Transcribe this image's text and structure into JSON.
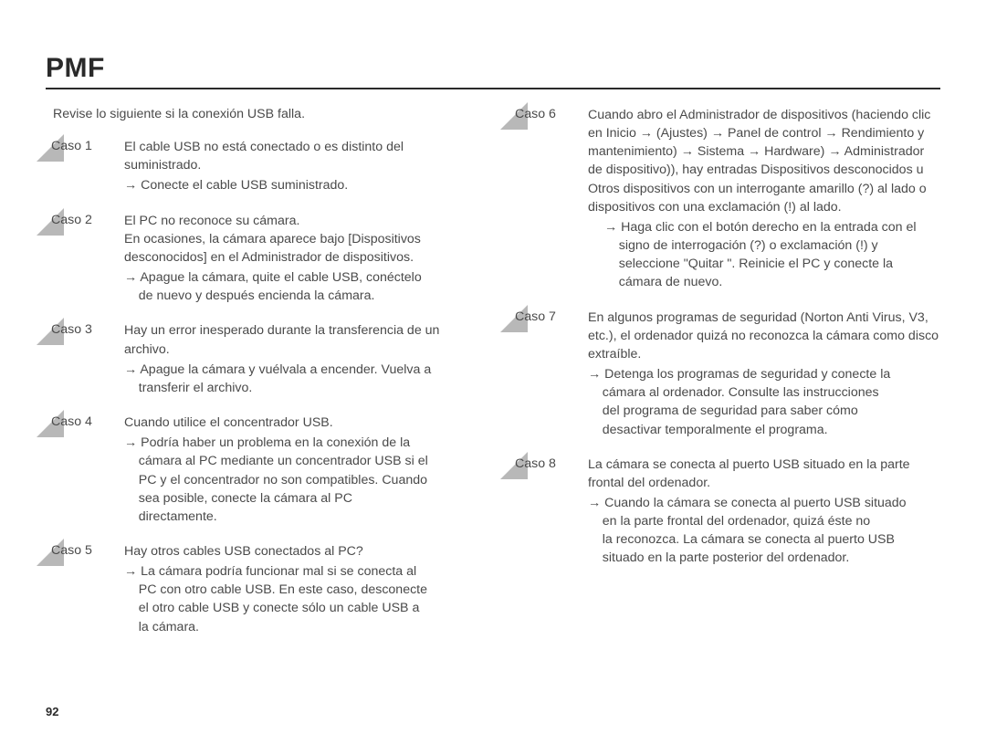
{
  "title": "PMF",
  "intro": "Revise lo siguiente si la conexión USB falla.",
  "page_number": "92",
  "colors": {
    "text": "#4a4a4a",
    "title": "#2a2a2a",
    "triangle": "#b8b8b8",
    "rule": "#2a2a2a",
    "background": "#ffffff"
  },
  "left_cases": [
    {
      "label": "Caso 1",
      "desc": "El cable USB no está conectado o es distinto del suministrado.",
      "action": "→ Conecte el cable USB suministrado."
    },
    {
      "label": "Caso 2",
      "desc": "El PC no reconoce su cámara.\nEn ocasiones, la cámara aparece bajo [Dispositivos desconocidos] en el Administrador de dispositivos.",
      "action": "→ Apague la cámara, quite el cable USB, conéctelo de nuevo y después encienda la cámara."
    },
    {
      "label": "Caso 3",
      "desc": "Hay un error inesperado durante la transferencia de un archivo.",
      "action": "→ Apague la cámara y vuélvala a encender. Vuelva a transferir el archivo."
    },
    {
      "label": "Caso 4",
      "desc": "Cuando utilice el concentrador USB.",
      "action": "→ Podría haber un problema en la conexión de la cámara al PC mediante un concentrador USB si el PC y el concentrador no son compatibles. Cuando sea posible, conecte la cámara al PC directamente."
    },
    {
      "label": "Caso 5",
      "desc": "Hay otros cables USB conectados al PC?",
      "action": "→ La cámara podría funcionar mal si se conecta al PC con otro cable USB. En este caso, desconecte el otro cable USB y conecte sólo un cable USB a la cámara."
    }
  ],
  "right_cases": [
    {
      "label": "Caso 6",
      "desc": "Cuando abro el Administrador de dispositivos (haciendo clic en Inicio → (Ajustes) → Panel de control → Rendimiento y mantenimiento) → Sistema → Hardware) → Administrador de dispositivo)), hay entradas Dispositivos desconocidos u Otros dispositivos con un interrogante amarillo (?) al lado o dispositivos con una exclamación (!) al lado.",
      "action": "→ Haga clic con el botón derecho en la entrada con el signo de interrogación (?) o exclamación (!) y seleccione \"Quitar \". Reinicie el PC y conecte la cámara de nuevo.",
      "action_class": "sub"
    },
    {
      "label": "Caso 7",
      "desc": "En algunos programas de seguridad (Norton Anti Virus, V3, etc.), el ordenador quizá no reconozca la cámara como disco extraíble.",
      "action": "→ Detenga los programas de seguridad y conecte la cámara al ordenador. Consulte las instrucciones del programa de seguridad para saber cómo desactivar temporalmente el programa."
    },
    {
      "label": "Caso 8",
      "desc": "La cámara se conecta al puerto USB situado en la parte frontal del ordenador.",
      "action": "→ Cuando la cámara se conecta al puerto USB situado en la parte frontal del ordenador, quizá éste no la reconozca. La cámara se conecta al puerto USB situado en la parte posterior del ordenador."
    }
  ]
}
